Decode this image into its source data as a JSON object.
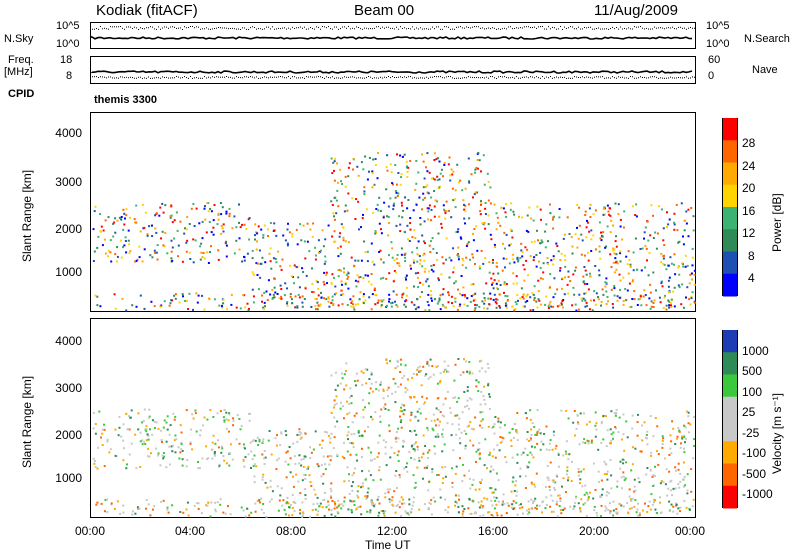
{
  "header": {
    "station": "Kodiak (fitACF)",
    "beam": "Beam 00",
    "date": "11/Aug/2009"
  },
  "top_panels": {
    "nsky_label": "N.Sky",
    "nsky_ticks": [
      "10^5",
      "10^0"
    ],
    "nsearch_label": "N.Search",
    "nsearch_ticks": [
      "10^5",
      "10^0"
    ],
    "freq_label": "Freq.",
    "freq_unit": "[MHz]",
    "freq_ticks": [
      "18",
      "8"
    ],
    "nave_label": "Nave",
    "nave_ticks": [
      "60",
      "0"
    ],
    "cpid_label": "CPID",
    "cpid_value": "themis 3300"
  },
  "chart_data": [
    {
      "type": "heatmap",
      "ylabel": "Slant Range [km]",
      "xlabel": "Time UT",
      "ylim": [
        180,
        4500
      ],
      "yticks": [
        "4000",
        "3000",
        "2000",
        "1000"
      ],
      "colorbar": {
        "label": "Power [dB]",
        "ticks": [
          "28",
          "24",
          "20",
          "16",
          "12",
          "8",
          "4"
        ],
        "colors": [
          "#ff0000",
          "#ff6600",
          "#ffaa00",
          "#ffd400",
          "#3cb371",
          "#2e8b57",
          "#1e50b4",
          "#0000ff"
        ]
      }
    },
    {
      "type": "heatmap",
      "ylabel": "Slant Range [km]",
      "xlabel": "Time UT",
      "ylim": [
        180,
        4500
      ],
      "yticks": [
        "4000",
        "3000",
        "2000",
        "1000"
      ],
      "xticks": [
        "00:00",
        "04:00",
        "08:00",
        "12:00",
        "16:00",
        "20:00",
        "00:00"
      ],
      "colorbar": {
        "label": "Velocity [m s⁻¹]",
        "ticks": [
          "1000",
          "500",
          "100",
          "25",
          "-25",
          "-100",
          "-500",
          "-1000"
        ],
        "colors": [
          "#1e3cb4",
          "#2e8b57",
          "#3cc83c",
          "#c8c8c8",
          "#c8c8c8",
          "#ffaa00",
          "#ff6600",
          "#ff0000"
        ]
      }
    }
  ]
}
